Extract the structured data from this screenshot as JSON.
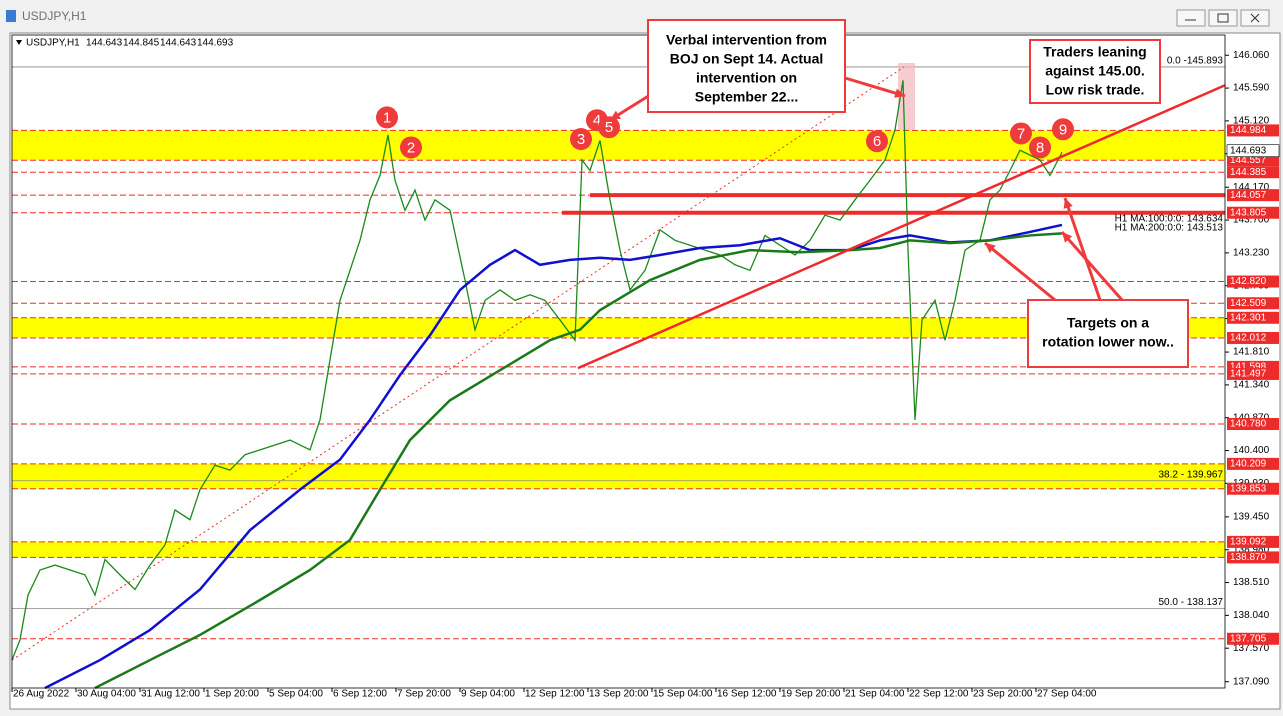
{
  "window": {
    "title": "USDJPY,H1"
  },
  "chart_data": {
    "type": "line",
    "symbol": "USDJPY,H1",
    "ohlc": [
      144.643,
      144.845,
      144.643,
      144.693
    ],
    "xlim": [
      0,
      606.5
    ],
    "ylim": [
      137.0,
      146.35
    ],
    "xticks": [
      {
        "value": 0,
        "label": "26 Aug 2022"
      },
      {
        "value": 32,
        "label": "30 Aug 04:00"
      },
      {
        "value": 64,
        "label": "31 Aug 12:00"
      },
      {
        "value": 96,
        "label": "1 Sep 20:00"
      },
      {
        "value": 128,
        "label": "5 Sep 04:00"
      },
      {
        "value": 160,
        "label": "6 Sep 12:00"
      },
      {
        "value": 192,
        "label": "7 Sep 20:00"
      },
      {
        "value": 224,
        "label": "9 Sep 04:00"
      },
      {
        "value": 256,
        "label": "12 Sep 12:00"
      },
      {
        "value": 288,
        "label": "13 Sep 20:00"
      },
      {
        "value": 320,
        "label": "15 Sep 04:00"
      },
      {
        "value": 352,
        "label": "16 Sep 12:00"
      },
      {
        "value": 384,
        "label": "19 Sep 20:00"
      },
      {
        "value": 416,
        "label": "21 Sep 04:00"
      },
      {
        "value": 448,
        "label": "22 Sep 12:00"
      },
      {
        "value": 480,
        "label": "23 Sep 20:00"
      },
      {
        "value": 512,
        "label": "27 Sep 04:00"
      }
    ],
    "yticks": [
      {
        "value": 146.06,
        "label": "146.060"
      },
      {
        "value": 145.59,
        "label": "145.590"
      },
      {
        "value": 145.12,
        "label": "145.120"
      },
      {
        "value": 144.65,
        "label": "144.650"
      },
      {
        "value": 144.17,
        "label": "144.170"
      },
      {
        "value": 143.7,
        "label": "143.700"
      },
      {
        "value": 143.23,
        "label": "143.230"
      },
      {
        "value": 142.76,
        "label": "142.760"
      },
      {
        "value": 142.29,
        "label": "142.290"
      },
      {
        "value": 141.81,
        "label": "141.810"
      },
      {
        "value": 141.34,
        "label": "141.340"
      },
      {
        "value": 140.87,
        "label": "140.870"
      },
      {
        "value": 140.4,
        "label": "140.400"
      },
      {
        "value": 139.93,
        "label": "139.930"
      },
      {
        "value": 139.45,
        "label": "139.450"
      },
      {
        "value": 138.98,
        "label": "138.980"
      },
      {
        "value": 138.51,
        "label": "138.510"
      },
      {
        "value": 138.04,
        "label": "138.040"
      },
      {
        "value": 137.57,
        "label": "137.570"
      },
      {
        "value": 137.09,
        "label": "137.090"
      }
    ],
    "series": [
      {
        "color": "#1b8a1b",
        "x": [
          0,
          4,
          8,
          14,
          21.5,
          29,
          36.5,
          41.5,
          46.5,
          54,
          61.5,
          69,
          76.5,
          81.5,
          89,
          94,
          101.5,
          109,
          116.5,
          124,
          131.5,
          139,
          149,
          154,
          159,
          164,
          169,
          174,
          179,
          184,
          188,
          191.5,
          196.5,
          201.5,
          206.5,
          211.5,
          219,
          226.5,
          231.5,
          236.5,
          244,
          251.5,
          259,
          266.5,
          274,
          281.5,
          285,
          289,
          294,
          299,
          304,
          309,
          316.5,
          324,
          331.5,
          339,
          346.5,
          354,
          361.5,
          369,
          376.5,
          384,
          391.5,
          399,
          406.5,
          414,
          421.5,
          429,
          436.5,
          441.5,
          445.5,
          448,
          451.5,
          455,
          461.5,
          466.5,
          471.5,
          476.5,
          484,
          489,
          494,
          499,
          504,
          509,
          514,
          519,
          525
        ],
        "values": [
          137.4,
          137.69,
          138.33,
          138.69,
          138.76,
          138.69,
          138.62,
          138.33,
          138.84,
          138.62,
          138.41,
          138.76,
          139.05,
          139.55,
          139.41,
          139.84,
          140.19,
          140.12,
          140.34,
          140.41,
          140.48,
          140.55,
          140.41,
          140.84,
          141.7,
          142.55,
          142.98,
          143.41,
          143.99,
          144.34,
          144.92,
          144.27,
          143.84,
          144.13,
          143.7,
          143.99,
          143.84,
          142.84,
          142.13,
          142.55,
          142.7,
          142.55,
          142.63,
          142.55,
          142.27,
          141.98,
          144.56,
          144.41,
          144.84,
          143.99,
          143.27,
          142.7,
          142.98,
          143.56,
          143.41,
          143.34,
          143.27,
          143.2,
          143.06,
          142.98,
          143.48,
          143.34,
          143.2,
          143.41,
          143.77,
          143.7,
          143.99,
          144.27,
          144.56,
          144.99,
          145.7,
          143.27,
          140.84,
          142.27,
          142.55,
          141.98,
          142.55,
          143.27,
          143.41,
          143.99,
          144.13,
          144.41,
          144.7,
          144.63,
          144.56,
          144.34,
          144.67
        ]
      },
      {
        "name": "H1 MA:100:0:0: 143.634",
        "color": "#1010d0",
        "x": [
          16.5,
          44,
          69,
          94,
          119,
          144,
          164,
          179,
          194,
          209,
          224,
          239,
          251.5,
          264,
          279,
          294,
          309,
          324,
          344,
          364,
          384,
          399,
          419,
          434,
          449,
          469,
          489,
          509,
          525
        ],
        "values": [
          137.0,
          137.4,
          137.83,
          138.41,
          139.26,
          139.84,
          140.27,
          140.84,
          141.48,
          142.05,
          142.7,
          143.06,
          143.27,
          143.06,
          143.13,
          143.16,
          143.13,
          143.2,
          143.3,
          143.34,
          143.44,
          143.27,
          143.27,
          143.41,
          143.48,
          143.38,
          143.41,
          143.53,
          143.63
        ]
      },
      {
        "name": "H1 MA:200:0:0: 143.513",
        "color": "#1a7a1a",
        "x": [
          41.5,
          69,
          94,
          124,
          149,
          169,
          184,
          199,
          219,
          244,
          269,
          284,
          294,
          319,
          344,
          369,
          394,
          419,
          434,
          449,
          469,
          489,
          509,
          525
        ],
        "values": [
          137.0,
          137.4,
          137.76,
          138.26,
          138.69,
          139.12,
          139.84,
          140.55,
          141.12,
          141.55,
          141.98,
          142.13,
          142.41,
          142.84,
          143.13,
          143.27,
          143.24,
          143.27,
          143.3,
          143.41,
          143.37,
          143.41,
          143.48,
          143.51
        ]
      }
    ],
    "last": 144.693,
    "bands": [
      [
        144.557,
        144.984
      ],
      [
        142.012,
        142.301
      ],
      [
        139.853,
        140.209
      ],
      [
        138.87,
        139.092
      ]
    ],
    "band_color": "#ffff00",
    "levels": [
      144.984,
      144.557,
      144.385,
      144.057,
      143.805,
      {
        "value": 142.82,
        "label": "142.820"
      },
      142.509,
      142.301,
      142.012,
      141.598,
      141.497,
      {
        "value": 140.78,
        "label": "140.780"
      },
      140.209,
      139.853,
      139.092,
      {
        "value": 138.87,
        "label": "138.870"
      },
      137.705
    ],
    "level_color": "#ee2b2b",
    "key_lines": [
      {
        "value": 144.057,
        "from": 289
      },
      {
        "value": 143.805,
        "from": 275
      }
    ],
    "fib_levels": [
      {
        "value": 145.893,
        "label": "0.0 -145.893"
      },
      {
        "value": 139.967,
        "label": "38.2 - 139.967"
      },
      {
        "value": 138.137,
        "label": "50.0 - 138.137"
      }
    ],
    "trendline": {
      "x": [
        283,
        606.5
      ],
      "values": [
        141.58,
        145.63
      ]
    },
    "fib_line": {
      "x": [
        0,
        446
      ],
      "values": [
        137.4,
        145.893
      ]
    },
    "markers": [
      {
        "label": "1",
        "x": 187.5,
        "y": 145.17
      },
      {
        "label": "2",
        "x": 199.5,
        "y": 144.74
      },
      {
        "label": "3",
        "x": 284.5,
        "y": 144.86
      },
      {
        "label": "4",
        "x": 292.5,
        "y": 145.13
      },
      {
        "label": "5",
        "x": 298.5,
        "y": 145.03
      },
      {
        "label": "6",
        "x": 432.5,
        "y": 144.83
      },
      {
        "label": "7",
        "x": 504.5,
        "y": 144.94
      },
      {
        "label": "8",
        "x": 514,
        "y": 144.74
      },
      {
        "label": "9",
        "x": 525.5,
        "y": 145.0
      }
    ],
    "annotations": [
      {
        "lines": [
          "Verbal intervention from",
          "BOJ on Sept 14. Actual",
          "intervention on",
          "September 22..."
        ]
      },
      {
        "lines": [
          "Traders leaning",
          "against 145.00.",
          "Low risk trade."
        ]
      },
      {
        "lines": [
          "Targets on a",
          "rotation lower now.."
        ]
      }
    ]
  }
}
